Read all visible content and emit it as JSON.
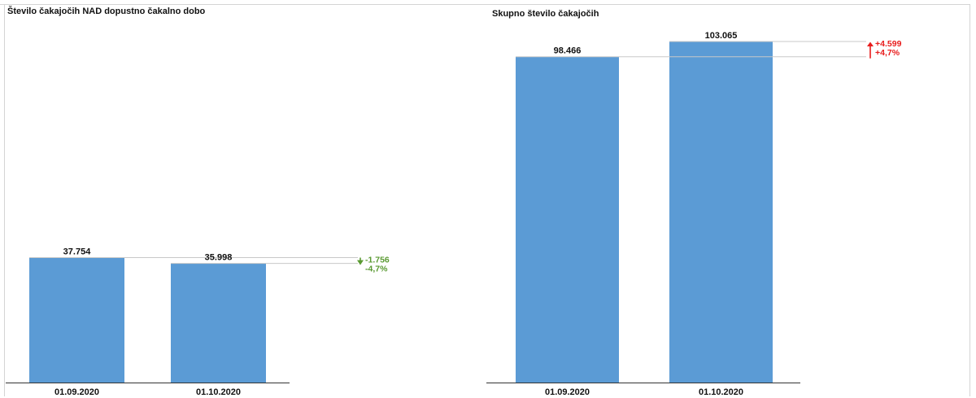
{
  "colors": {
    "bar": "#5b9bd5",
    "decrease": "#5a9a32",
    "increase": "#e81c1c",
    "ref_line": "#c8c8c8",
    "axis": "#333333"
  },
  "chart_data": [
    {
      "type": "bar",
      "title": "Število čakajočih NAD dopustno čakalno dobo",
      "categories": [
        "01.09.2020",
        "01.10.2020"
      ],
      "values": [
        37754,
        35998
      ],
      "value_labels": [
        "37.754",
        "35.998"
      ],
      "ylim": [
        0,
        103065
      ],
      "grid": false,
      "delta": {
        "direction": "down",
        "abs_label": "-1.756",
        "pct_label": "-4,7%"
      }
    },
    {
      "type": "bar",
      "title": "Skupno število čakajočih",
      "categories": [
        "01.09.2020",
        "01.10.2020"
      ],
      "values": [
        98466,
        103065
      ],
      "value_labels": [
        "98.466",
        "103.065"
      ],
      "ylim": [
        0,
        103065
      ],
      "grid": false,
      "delta": {
        "direction": "up",
        "abs_label": "+4.599",
        "pct_label": "+4,7%"
      }
    }
  ]
}
